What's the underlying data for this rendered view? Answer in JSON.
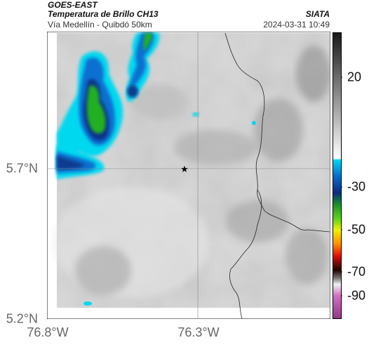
{
  "header": {
    "title": "GOES-EAST",
    "product": "Temperatura de Brillo CH13",
    "location": "Vía Medellín - Quibdó 50km",
    "organization": "SIATA",
    "timestamp": "2024-03-31 10:49"
  },
  "map": {
    "y_axis_ticks": [
      {
        "label": "5.7°N",
        "lat": 5.7
      },
      {
        "label": "5.2°N",
        "lat": 5.2
      }
    ],
    "x_axis_ticks": [
      {
        "label": "76.8°W",
        "lon": -76.8
      },
      {
        "label": "76.3°W",
        "lon": -76.3
      }
    ],
    "lat_range": [
      5.2,
      6.35
    ],
    "lon_range": [
      -76.8,
      -76.05
    ],
    "marker": {
      "symbol": "★",
      "lat": 5.7,
      "lon": -76.34
    }
  },
  "colorbar": {
    "labels": [
      "20",
      "-30",
      "-50",
      "-70",
      "-90"
    ],
    "tick_values": [
      20,
      -30,
      -50,
      -70,
      -90
    ],
    "range": [
      -95,
      35
    ],
    "colors": {
      "warm_gray_top": "#222222",
      "warm_gray_bottom": "#ffffff",
      "cyan": "#00d8f0",
      "blue": "#0048b8",
      "green": "#20b020",
      "yellow": "#f0f000",
      "red": "#e01010",
      "magenta": "#b040a0"
    }
  }
}
